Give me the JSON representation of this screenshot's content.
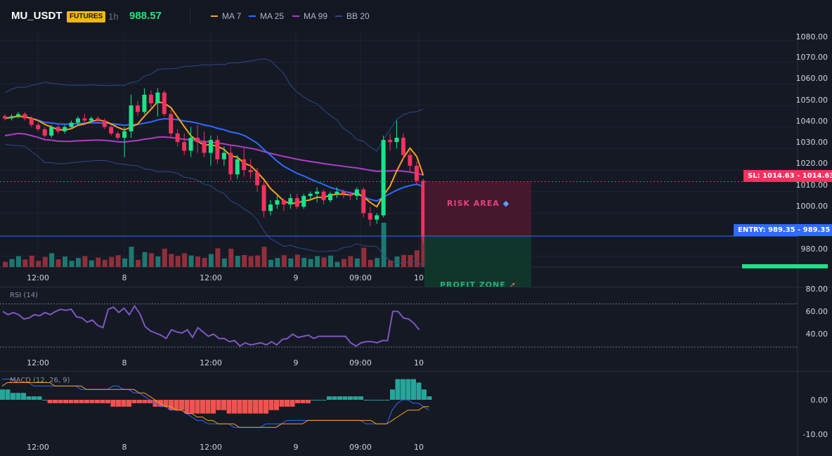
{
  "header": {
    "symbol": "MU_USDT",
    "badge": "FUTURES",
    "timeframe": "1h",
    "price": "988.57",
    "legend": [
      {
        "label": "MA 7",
        "color": "#f7a21b"
      },
      {
        "label": "MA 25",
        "color": "#2f6bff"
      },
      {
        "label": "MA 99",
        "color": "#b03cc9"
      },
      {
        "label": "BB 20",
        "color": "#2c4a8a"
      }
    ]
  },
  "main": {
    "price_axis": [
      "1080.00",
      "1070.00",
      "1060.00",
      "1050.00",
      "1040.00",
      "1030.00",
      "1020.00",
      "1010.00",
      "1000.00",
      "980.00"
    ],
    "sl_tag": "SL: 1014.63",
    "sl_value": "1014.63",
    "entry_tag": "ENTRY: 989.35",
    "entry_value": "989.35",
    "risk_label": "RISK AREA",
    "profit_label": "PROFIT ZONE",
    "time_axis": [
      "12:00",
      "8",
      "12:00",
      "9",
      "09:00",
      "10"
    ],
    "colors": {
      "up": "#1ee28a",
      "down": "#f2325f",
      "vol_up": "#1f8a7e",
      "vol_down": "#a7333f"
    }
  },
  "rsi": {
    "title": "RSI (14)",
    "axis": [
      "80.00",
      "60.00",
      "40.00"
    ],
    "time_axis": [
      "12:00",
      "8",
      "12:00",
      "9",
      "09:00",
      "10"
    ],
    "values": [
      63,
      60,
      62,
      60,
      56,
      57,
      60,
      59,
      62,
      60,
      63,
      65,
      64,
      65,
      58,
      57,
      53,
      55,
      50,
      48,
      65,
      67,
      62,
      66,
      60,
      68,
      61,
      49,
      45,
      43,
      41,
      38,
      46,
      44,
      43,
      46,
      39,
      48,
      44,
      40,
      42,
      38,
      38,
      35,
      36,
      31,
      34,
      32,
      33,
      34,
      32,
      35,
      32,
      37,
      38,
      42,
      39,
      40,
      41,
      38,
      40,
      40,
      40,
      40,
      40,
      40,
      34,
      31,
      34,
      35,
      35,
      34,
      36,
      36,
      63,
      63,
      57,
      56,
      52,
      46
    ],
    "line_color": "#7e57c2"
  },
  "macd": {
    "title": "MACD (12, 26, 9)",
    "axis": [
      "0.00",
      "-10.00"
    ],
    "time_axis": [
      "12:00",
      "8",
      "12:00",
      "9",
      "09:00",
      "10"
    ],
    "hist": [
      3,
      3,
      2,
      2,
      2,
      1,
      1,
      1,
      0,
      -1,
      -1,
      -1,
      -1,
      -1,
      -1,
      -1,
      -1,
      -1,
      -1,
      -1,
      -1,
      -2,
      -2,
      -2,
      -2,
      -1,
      -1,
      -1,
      -1,
      -2,
      -2,
      -2,
      -3,
      -3,
      -3,
      -4,
      -4,
      -4,
      -4,
      -4,
      -4,
      -3,
      -3,
      -4,
      -4,
      -4,
      -4,
      -4,
      -4,
      -4,
      -4,
      -3,
      -3,
      -2,
      -2,
      -2,
      -1,
      -1,
      -1,
      0,
      0,
      0,
      1,
      1,
      1,
      1,
      1,
      1,
      1,
      0,
      0,
      0,
      0,
      0,
      3,
      6,
      6,
      6,
      6,
      5,
      3,
      1
    ],
    "macd_line": [
      6,
      6,
      6,
      5,
      5,
      5,
      4,
      4,
      4,
      4,
      4,
      4,
      4,
      4,
      4,
      3,
      3,
      3,
      3,
      3,
      3,
      4,
      4,
      3,
      3,
      2,
      2,
      1,
      0,
      -1,
      -2,
      -2,
      -3,
      -3,
      -3,
      -4,
      -5,
      -6,
      -6,
      -7,
      -7,
      -7,
      -7,
      -7,
      -8,
      -8,
      -8,
      -8,
      -8,
      -8,
      -7,
      -7,
      -7,
      -7,
      -6,
      -6,
      -6,
      -6,
      -6,
      -6,
      -6,
      -6,
      -6,
      -6,
      -6,
      -6,
      -6,
      -6,
      -6,
      -7,
      -7,
      -7,
      -7,
      -7,
      -3,
      -1,
      0,
      0,
      -1,
      -1,
      -2,
      -3
    ],
    "signal_line": [
      4,
      5,
      5,
      5,
      5,
      5,
      5,
      5,
      5,
      5,
      4,
      4,
      4,
      4,
      4,
      4,
      3,
      3,
      3,
      3,
      3,
      3,
      3,
      3,
      3,
      3,
      2,
      2,
      1,
      0,
      -1,
      -2,
      -2,
      -3,
      -3,
      -4,
      -4,
      -5,
      -5,
      -6,
      -6,
      -7,
      -7,
      -7,
      -7,
      -8,
      -8,
      -8,
      -8,
      -8,
      -8,
      -8,
      -8,
      -7,
      -7,
      -7,
      -7,
      -7,
      -6,
      -6,
      -6,
      -6,
      -6,
      -6,
      -6,
      -6,
      -6,
      -6,
      -6,
      -6,
      -6,
      -7,
      -7,
      -7,
      -6,
      -5,
      -4,
      -3,
      -3,
      -3,
      -2,
      -2
    ],
    "macd_color": "#2f6bff",
    "signal_color": "#f7a21b",
    "hist_up": "#26a69a",
    "hist_down": "#ef5350"
  },
  "chart_data": {
    "type": "candlestick",
    "ylim": [
      975,
      1082
    ],
    "candles": [
      [
        1045,
        1046,
        1043,
        1044
      ],
      [
        1044,
        1046,
        1043,
        1045
      ],
      [
        1045,
        1047,
        1044,
        1046
      ],
      [
        1046,
        1047,
        1043,
        1044
      ],
      [
        1044,
        1045,
        1040,
        1041
      ],
      [
        1041,
        1042,
        1038,
        1039
      ],
      [
        1039,
        1040,
        1035,
        1036
      ],
      [
        1036,
        1041,
        1035,
        1040
      ],
      [
        1040,
        1041,
        1037,
        1038
      ],
      [
        1038,
        1041,
        1037,
        1040
      ],
      [
        1040,
        1043,
        1039,
        1042
      ],
      [
        1042,
        1045,
        1041,
        1044
      ],
      [
        1044,
        1046,
        1042,
        1043
      ],
      [
        1043,
        1045,
        1042,
        1044
      ],
      [
        1044,
        1045,
        1042,
        1043
      ],
      [
        1043,
        1044,
        1039,
        1040
      ],
      [
        1040,
        1041,
        1036,
        1037
      ],
      [
        1037,
        1038,
        1034,
        1035
      ],
      [
        1035,
        1040,
        1026,
        1038
      ],
      [
        1038,
        1055,
        1035,
        1050
      ],
      [
        1050,
        1052,
        1045,
        1047
      ],
      [
        1047,
        1058,
        1046,
        1055
      ],
      [
        1055,
        1057,
        1049,
        1051
      ],
      [
        1051,
        1058,
        1045,
        1056
      ],
      [
        1056,
        1057,
        1045,
        1046
      ],
      [
        1046,
        1048,
        1035,
        1037
      ],
      [
        1037,
        1039,
        1031,
        1033
      ],
      [
        1033,
        1037,
        1027,
        1029
      ],
      [
        1029,
        1040,
        1026,
        1035
      ],
      [
        1035,
        1041,
        1028,
        1033
      ],
      [
        1033,
        1038,
        1026,
        1028
      ],
      [
        1028,
        1036,
        1022,
        1034
      ],
      [
        1034,
        1036,
        1023,
        1025
      ],
      [
        1025,
        1031,
        1022,
        1028
      ],
      [
        1028,
        1031,
        1015,
        1018
      ],
      [
        1018,
        1027,
        1016,
        1025
      ],
      [
        1025,
        1030,
        1017,
        1020
      ],
      [
        1020,
        1025,
        1016,
        1019
      ],
      [
        1019,
        1021,
        1010,
        1013
      ],
      [
        1013,
        1015,
        998,
        1001
      ],
      [
        1001,
        1006,
        999,
        1004
      ],
      [
        1004,
        1008,
        1002,
        1006
      ],
      [
        1006,
        1007,
        1001,
        1004
      ],
      [
        1004,
        1009,
        1002,
        1007
      ],
      [
        1007,
        1009,
        1002,
        1003
      ],
      [
        1003,
        1009,
        1002,
        1008
      ],
      [
        1008,
        1010,
        1006,
        1009
      ],
      [
        1009,
        1012,
        1005,
        1010
      ],
      [
        1010,
        1011,
        1004,
        1006
      ],
      [
        1006,
        1010,
        1005,
        1009
      ],
      [
        1009,
        1012,
        1007,
        1010
      ],
      [
        1010,
        1011,
        1007,
        1009
      ],
      [
        1009,
        1010,
        1006,
        1008
      ],
      [
        1008,
        1012,
        1006,
        1011
      ],
      [
        1011,
        1012,
        998,
        1000
      ],
      [
        1000,
        1003,
        994,
        997
      ],
      [
        997,
        1000,
        995,
        999
      ],
      [
        999,
        1036,
        998,
        1034
      ],
      [
        1034,
        1037,
        1029,
        1033
      ],
      [
        1033,
        1043,
        1030,
        1035
      ],
      [
        1035,
        1037,
        1025,
        1027
      ],
      [
        1027,
        1029,
        1019,
        1022
      ],
      [
        1022,
        1024,
        1013,
        1015
      ],
      [
        1015,
        1016,
        986,
        989
      ]
    ]
  }
}
